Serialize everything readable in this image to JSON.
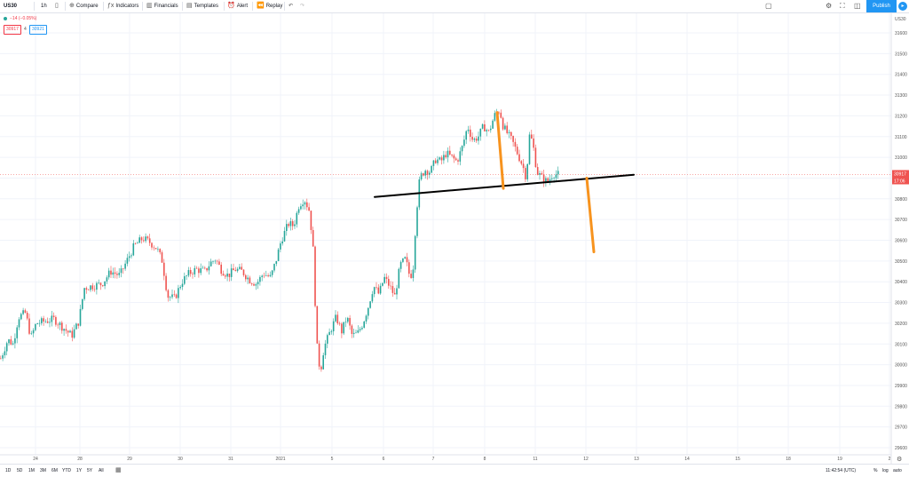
{
  "toolbar": {
    "symbol": "US30",
    "interval": "1h",
    "compare": "Compare",
    "indicators": "Indicators",
    "financials": "Financials",
    "templates": "Templates",
    "alert": "Alert",
    "replay": "Replay",
    "publish": "Publish"
  },
  "legend": {
    "change": "−14 (−0.05%)",
    "bid": "30917",
    "ask": "30921",
    "spread": "4"
  },
  "price_labels": {
    "last": "30917",
    "countdown": "17:06"
  },
  "bottombar": {
    "ranges": [
      "1D",
      "5D",
      "1M",
      "3M",
      "6M",
      "YTD",
      "1Y",
      "5Y",
      "All"
    ],
    "time": "11:42:54 (UTC)",
    "percent": "%",
    "log": "log",
    "auto": "auto"
  },
  "colors": {
    "up": "#26a69a",
    "down": "#ef5350",
    "trendline": "#000000",
    "projection": "#f7931e",
    "accent": "#2196f3"
  },
  "chart_data": {
    "type": "candlestick",
    "symbol": "US30",
    "interval": "1h",
    "ylim": [
      29550,
      31680
    ],
    "y_ticks": [
      29600,
      29700,
      29800,
      29900,
      30000,
      30100,
      30200,
      30300,
      30400,
      30500,
      30600,
      30700,
      30800,
      30900,
      31000,
      31100,
      31200,
      31300,
      31400,
      31500,
      31600
    ],
    "x_ticks": [
      "24",
      "28",
      "29",
      "30",
      "31",
      "2021",
      "5",
      "6",
      "7",
      "8",
      "11",
      "12",
      "13",
      "14",
      "15",
      "18",
      "19",
      "2"
    ],
    "last_price": 30917,
    "close_path": [
      [
        0,
        30030
      ],
      [
        8,
        30120
      ],
      [
        14,
        30100
      ],
      [
        20,
        30230
      ],
      [
        28,
        30250
      ],
      [
        34,
        30130
      ],
      [
        40,
        30200
      ],
      [
        50,
        30210
      ],
      [
        60,
        30220
      ],
      [
        70,
        30180
      ],
      [
        80,
        30140
      ],
      [
        88,
        30210
      ],
      [
        94,
        30370
      ],
      [
        104,
        30380
      ],
      [
        114,
        30390
      ],
      [
        124,
        30450
      ],
      [
        134,
        30430
      ],
      [
        142,
        30500
      ],
      [
        150,
        30570
      ],
      [
        160,
        30610
      ],
      [
        168,
        30590
      ],
      [
        176,
        30560
      ],
      [
        182,
        30500
      ],
      [
        188,
        30330
      ],
      [
        196,
        30320
      ],
      [
        204,
        30400
      ],
      [
        212,
        30440
      ],
      [
        220,
        30460
      ],
      [
        230,
        30450
      ],
      [
        236,
        30490
      ],
      [
        242,
        30510
      ],
      [
        248,
        30460
      ],
      [
        256,
        30430
      ],
      [
        264,
        30460
      ],
      [
        272,
        30450
      ],
      [
        280,
        30410
      ],
      [
        288,
        30390
      ],
      [
        296,
        30440
      ],
      [
        304,
        30420
      ],
      [
        310,
        30500
      ],
      [
        316,
        30600
      ],
      [
        324,
        30680
      ],
      [
        330,
        30670
      ],
      [
        336,
        30770
      ],
      [
        342,
        30800
      ],
      [
        348,
        30740
      ],
      [
        352,
        30550
      ],
      [
        356,
        30100
      ],
      [
        360,
        29960
      ],
      [
        364,
        30080
      ],
      [
        372,
        30170
      ],
      [
        378,
        30230
      ],
      [
        384,
        30160
      ],
      [
        390,
        30230
      ],
      [
        396,
        30140
      ],
      [
        402,
        30150
      ],
      [
        408,
        30200
      ],
      [
        414,
        30280
      ],
      [
        420,
        30380
      ],
      [
        426,
        30340
      ],
      [
        432,
        30420
      ],
      [
        438,
        30380
      ],
      [
        444,
        30330
      ],
      [
        450,
        30480
      ],
      [
        456,
        30510
      ],
      [
        460,
        30440
      ],
      [
        464,
        30430
      ],
      [
        468,
        30720
      ],
      [
        472,
        30900
      ],
      [
        478,
        30940
      ],
      [
        484,
        30930
      ],
      [
        490,
        30990
      ],
      [
        496,
        30980
      ],
      [
        502,
        31020
      ],
      [
        508,
        31000
      ],
      [
        514,
        30980
      ],
      [
        520,
        31050
      ],
      [
        526,
        31150
      ],
      [
        532,
        31080
      ],
      [
        538,
        31100
      ],
      [
        544,
        31150
      ],
      [
        550,
        31120
      ],
      [
        556,
        31200
      ],
      [
        562,
        31230
      ],
      [
        566,
        31150
      ],
      [
        570,
        31120
      ],
      [
        576,
        31080
      ],
      [
        582,
        31020
      ],
      [
        588,
        30960
      ],
      [
        592,
        30900
      ],
      [
        596,
        31120
      ],
      [
        600,
        31050
      ],
      [
        604,
        30930
      ],
      [
        610,
        30900
      ],
      [
        616,
        30880
      ],
      [
        622,
        30920
      ],
      [
        628,
        30917
      ]
    ],
    "drawings": [
      {
        "type": "trendline",
        "from": [
          422,
          30809
        ],
        "to": [
          714,
          30916
        ]
      },
      {
        "type": "projection",
        "from": [
          560,
          31216
        ],
        "to": [
          567,
          30850
        ]
      },
      {
        "type": "projection",
        "from": [
          661,
          30900
        ],
        "to": [
          669,
          30544
        ]
      }
    ]
  }
}
